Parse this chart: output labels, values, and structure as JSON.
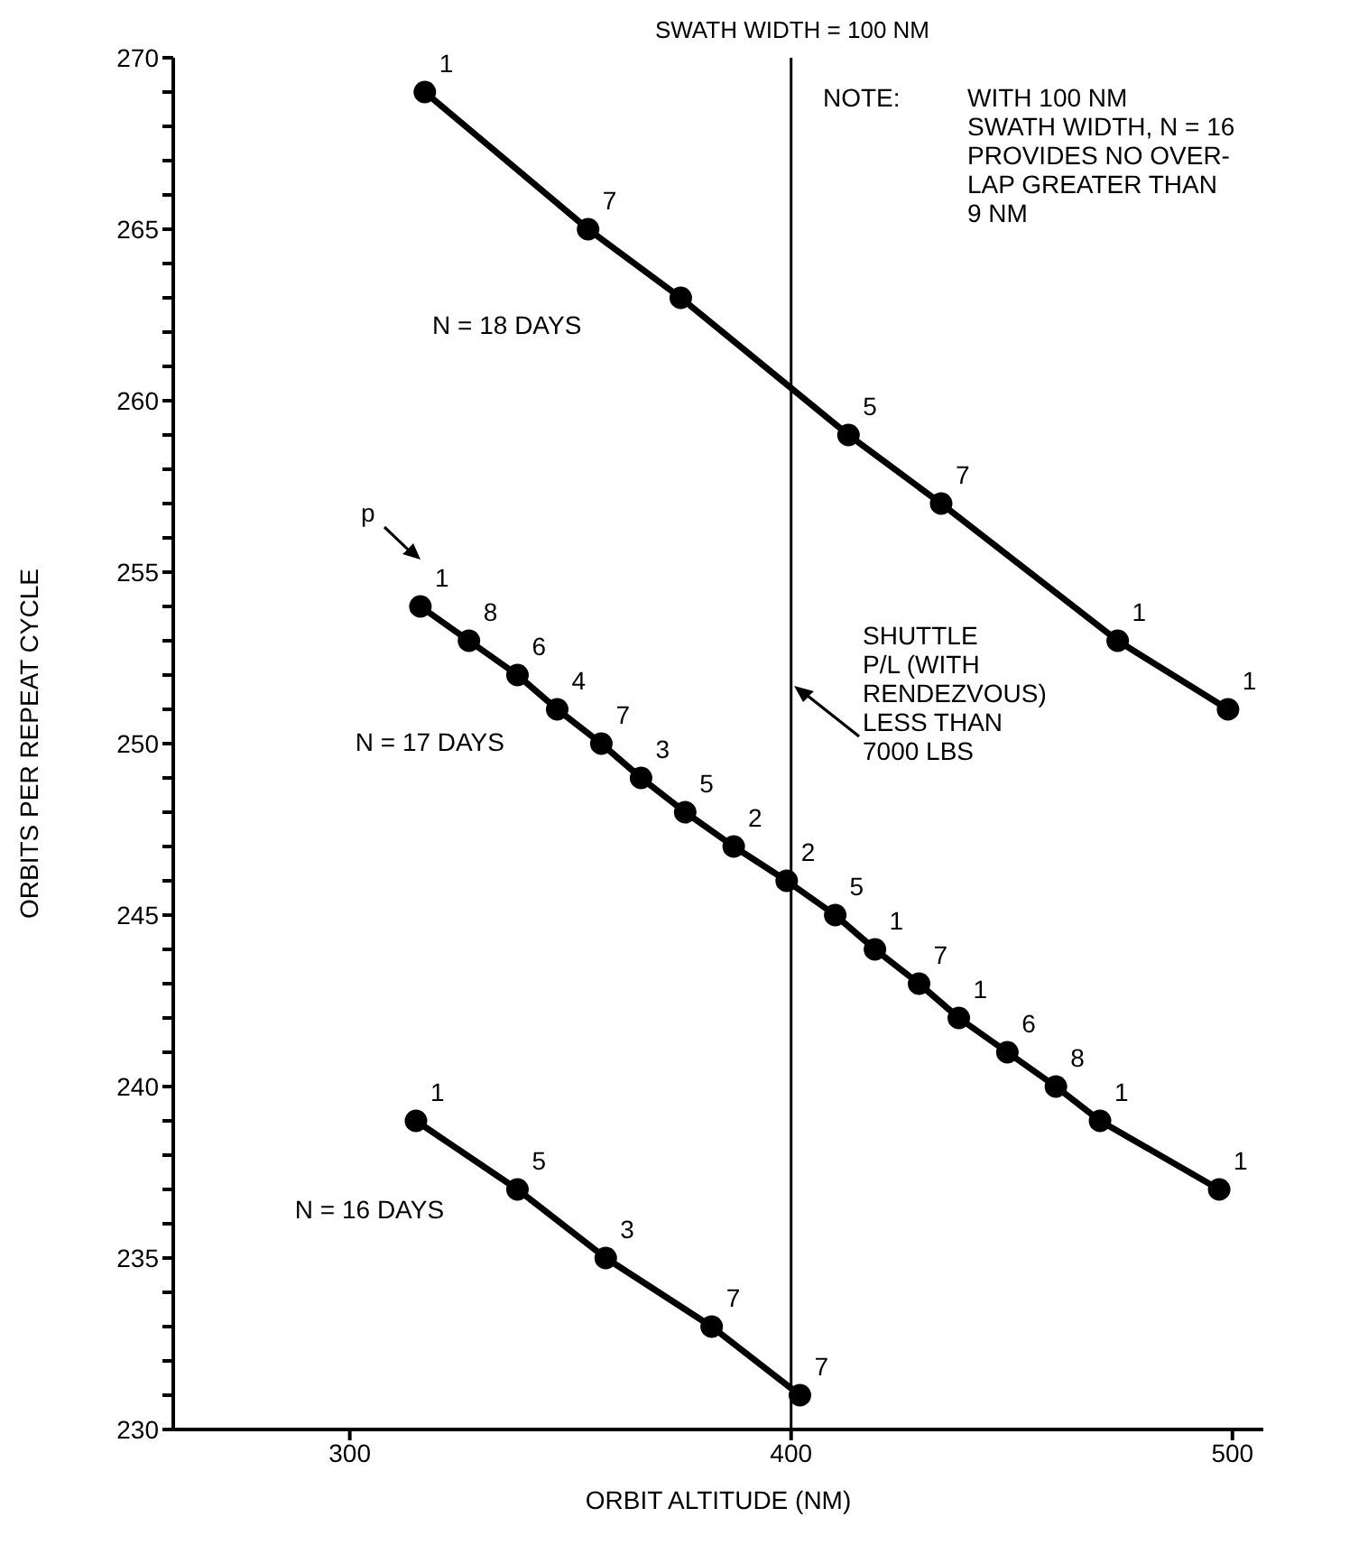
{
  "chart_data": {
    "type": "line",
    "title": "SWATH WIDTH = 100 NM",
    "xlabel": "ORBIT ALTITUDE (NM)",
    "ylabel": "ORBITS PER REPEAT CYCLE",
    "xlim": [
      260,
      507
    ],
    "xticks": [
      300,
      400,
      500
    ],
    "ylim": [
      230,
      270
    ],
    "yticks": [
      230,
      {
        "value": 231,
        "label": null
      },
      {
        "value": 232,
        "label": null
      },
      {
        "value": 233,
        "label": null
      },
      {
        "value": 234,
        "label": null
      },
      235,
      {
        "value": 236,
        "label": null
      },
      {
        "value": 237,
        "label": null
      },
      {
        "value": 238,
        "label": null
      },
      {
        "value": 239,
        "label": null
      },
      240,
      {
        "value": 241,
        "label": null
      },
      {
        "value": 242,
        "label": null
      },
      {
        "value": 243,
        "label": null
      },
      {
        "value": 244,
        "label": null
      },
      245,
      {
        "value": 246,
        "label": null
      },
      {
        "value": 247,
        "label": null
      },
      {
        "value": 248,
        "label": null
      },
      {
        "value": 249,
        "label": null
      },
      250,
      {
        "value": 251,
        "label": null
      },
      {
        "value": 252,
        "label": null
      },
      {
        "value": 253,
        "label": null
      },
      {
        "value": 254,
        "label": null
      },
      255,
      {
        "value": 256,
        "label": null
      },
      {
        "value": 257,
        "label": null
      },
      {
        "value": 258,
        "label": null
      },
      {
        "value": 259,
        "label": null
      },
      260,
      {
        "value": 261,
        "label": null
      },
      {
        "value": 262,
        "label": null
      },
      {
        "value": 263,
        "label": null
      },
      {
        "value": 264,
        "label": null
      },
      265,
      {
        "value": 266,
        "label": null
      },
      {
        "value": 267,
        "label": null
      },
      {
        "value": 268,
        "label": null
      },
      {
        "value": 269,
        "label": null
      },
      270
    ],
    "grid": false,
    "marker": "circle",
    "line_style": "solid",
    "series": [
      {
        "name": "N = 18 DAYS",
        "color": "#000000",
        "x": [
          317,
          354,
          375,
          413,
          434,
          474,
          499
        ],
        "values": [
          269,
          265,
          263,
          259,
          257,
          253,
          251
        ]
      },
      {
        "name": "N = 17 DAYS",
        "color": "#000000",
        "x": [
          316,
          327,
          338,
          347,
          357,
          366,
          376,
          387,
          399,
          410,
          419,
          429,
          438,
          449,
          460,
          470,
          497
        ],
        "values": [
          254,
          253,
          252,
          251,
          250,
          249,
          248,
          247,
          246,
          245,
          244,
          243,
          242,
          241,
          240,
          239,
          237
        ]
      },
      {
        "name": "N = 16 DAYS",
        "color": "#000000",
        "x": [
          315,
          338,
          358,
          382,
          402
        ],
        "values": [
          239,
          237,
          235,
          233,
          231
        ]
      }
    ],
    "ref_lines": [
      {
        "axis": "x",
        "value": 400,
        "label": "SHUTTLE\nP/L (WITH\nRENDEZVOUS)\nLESS THAN\n7000 LBS",
        "color": "#000000"
      }
    ],
    "annotations": [
      "NOTE:",
      "WITH 100 NM\nSWATH WIDTH, N = 16\nPROVIDES NO OVER-\nLAP GREATER THAN\n9 NM",
      "p",
      {
        "text": "1",
        "x": 317,
        "y": 269
      },
      {
        "text": "7",
        "x": 354,
        "y": 265
      },
      {
        "text": "5",
        "x": 413,
        "y": 259
      },
      {
        "text": "7",
        "x": 434,
        "y": 257
      },
      {
        "text": "1",
        "x": 474,
        "y": 253
      },
      {
        "text": "1",
        "x": 499,
        "y": 251
      },
      {
        "text": "1",
        "x": 316,
        "y": 254
      },
      {
        "text": "8",
        "x": 327,
        "y": 253
      },
      {
        "text": "6",
        "x": 338,
        "y": 252
      },
      {
        "text": "4",
        "x": 347,
        "y": 251
      },
      {
        "text": "7",
        "x": 357,
        "y": 250
      },
      {
        "text": "3",
        "x": 366,
        "y": 249
      },
      {
        "text": "5",
        "x": 376,
        "y": 248
      },
      {
        "text": "2",
        "x": 387,
        "y": 247
      },
      {
        "text": "2",
        "x": 399,
        "y": 246
      },
      {
        "text": "5",
        "x": 410,
        "y": 245
      },
      {
        "text": "1",
        "x": 419,
        "y": 244
      },
      {
        "text": "7",
        "x": 429,
        "y": 243
      },
      {
        "text": "1",
        "x": 438,
        "y": 242
      },
      {
        "text": "6",
        "x": 449,
        "y": 241
      },
      {
        "text": "8",
        "x": 460,
        "y": 240
      },
      {
        "text": "1",
        "x": 470,
        "y": 239
      },
      {
        "text": "1",
        "x": 497,
        "y": 237
      },
      {
        "text": "1",
        "x": 315,
        "y": 239
      },
      {
        "text": "5",
        "x": 338,
        "y": 237
      },
      {
        "text": "3",
        "x": 358,
        "y": 235
      },
      {
        "text": "7",
        "x": 382,
        "y": 233
      },
      {
        "text": "7",
        "x": 402,
        "y": 231
      }
    ]
  }
}
